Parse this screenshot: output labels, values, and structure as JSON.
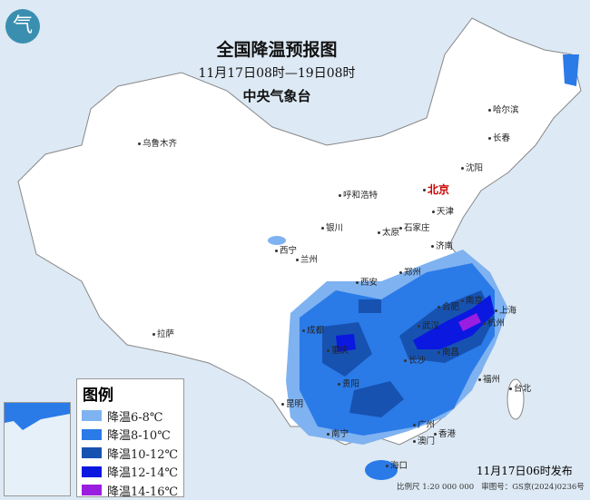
{
  "header": {
    "title": "全国降温预报图",
    "period": "11月17日08时—19日08时",
    "agency": "中央气象台"
  },
  "legend": {
    "title": "图例",
    "items": [
      {
        "label": "降温6-8℃",
        "color": "#7fb2f0"
      },
      {
        "label": "降温8-10℃",
        "color": "#2a7ae8"
      },
      {
        "label": "降温10-12℃",
        "color": "#1752b0"
      },
      {
        "label": "降温12-14℃",
        "color": "#0a18e0"
      },
      {
        "label": "降温14-16℃",
        "color": "#9a1ee0"
      }
    ]
  },
  "cities": [
    "乌鲁木齐",
    "哈尔滨",
    "长春",
    "沈阳",
    "北京",
    "天津",
    "呼和浩特",
    "银川",
    "太原",
    "石家庄",
    "济南",
    "西宁",
    "兰州",
    "郑州",
    "西安",
    "合肥",
    "南京",
    "上海",
    "杭州",
    "成都",
    "武汉",
    "重庆",
    "长沙",
    "南昌",
    "拉萨",
    "贵阳",
    "福州",
    "台北",
    "昆明",
    "南宁",
    "广州",
    "香港",
    "澳门",
    "海口"
  ],
  "footer": {
    "issued": "11月17日06时发布",
    "scale": "比例尺 1:20 000 000",
    "approval": "审图号：GS京(2024)0236号"
  },
  "logo_icon": "cma-logo-icon"
}
